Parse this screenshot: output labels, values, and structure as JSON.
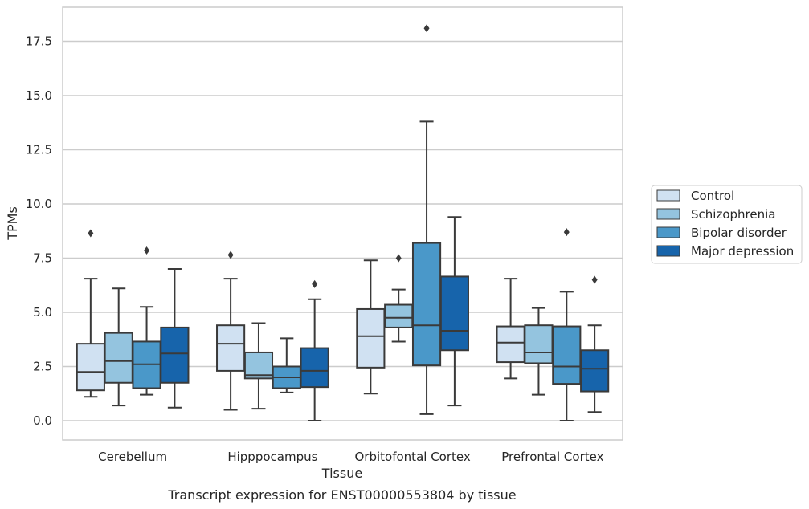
{
  "chart_data": {
    "type": "box",
    "xlabel": "Tissue",
    "ylabel": "TPMs",
    "caption": "Transcript expression for ENST00000553804 by tissue",
    "ylim": [
      -0.85,
      19.0
    ],
    "yticks": [
      "0.0",
      "2.5",
      "5.0",
      "7.5",
      "10.0",
      "12.5",
      "15.0",
      "17.5"
    ],
    "ytick_values": [
      0,
      2.5,
      5,
      7.5,
      10,
      12.5,
      15,
      17.5
    ],
    "grid": "horizontal",
    "legend_position": "right",
    "categories": [
      "Cerebellum",
      "Hipppocampus",
      "Orbitofontal Cortex",
      "Prefrontal Cortex"
    ],
    "series": [
      {
        "name": "Control",
        "color": "#d0e1f2",
        "boxes": [
          {
            "whislo": 1.1,
            "q1": 1.4,
            "med": 2.25,
            "q3": 3.55,
            "whishi": 6.55,
            "fliers": [
              8.65
            ]
          },
          {
            "whislo": 0.5,
            "q1": 2.3,
            "med": 3.55,
            "q3": 4.4,
            "whishi": 6.55,
            "fliers": [
              7.65
            ]
          },
          {
            "whislo": 1.25,
            "q1": 2.45,
            "med": 3.9,
            "q3": 5.15,
            "whishi": 7.4,
            "fliers": []
          },
          {
            "whislo": 1.95,
            "q1": 2.7,
            "med": 3.6,
            "q3": 4.35,
            "whishi": 6.55,
            "fliers": []
          }
        ]
      },
      {
        "name": "Schizophrenia",
        "color": "#94c4df",
        "boxes": [
          {
            "whislo": 0.7,
            "q1": 1.75,
            "med": 2.75,
            "q3": 4.05,
            "whishi": 6.1,
            "fliers": []
          },
          {
            "whislo": 0.55,
            "q1": 1.95,
            "med": 2.1,
            "q3": 3.15,
            "whishi": 4.5,
            "fliers": []
          },
          {
            "whislo": 3.65,
            "q1": 4.3,
            "med": 4.75,
            "q3": 5.35,
            "whishi": 6.05,
            "fliers": [
              7.5
            ]
          },
          {
            "whislo": 1.2,
            "q1": 2.65,
            "med": 3.15,
            "q3": 4.4,
            "whishi": 5.2,
            "fliers": []
          }
        ]
      },
      {
        "name": "Bipolar disorder",
        "color": "#4a98c9",
        "boxes": [
          {
            "whislo": 1.2,
            "q1": 1.5,
            "med": 2.6,
            "q3": 3.65,
            "whishi": 5.25,
            "fliers": [
              7.85
            ]
          },
          {
            "whislo": 1.3,
            "q1": 1.5,
            "med": 2.0,
            "q3": 2.5,
            "whishi": 3.8,
            "fliers": []
          },
          {
            "whislo": 0.3,
            "q1": 2.55,
            "med": 4.4,
            "q3": 8.2,
            "whishi": 13.8,
            "fliers": [
              18.1
            ]
          },
          {
            "whislo": 0.0,
            "q1": 1.7,
            "med": 2.5,
            "q3": 4.35,
            "whishi": 5.95,
            "fliers": [
              8.7
            ]
          }
        ]
      },
      {
        "name": "Major depression",
        "color": "#1764ab",
        "boxes": [
          {
            "whislo": 0.6,
            "q1": 1.75,
            "med": 3.1,
            "q3": 4.3,
            "whishi": 7.0,
            "fliers": []
          },
          {
            "whislo": 0.0,
            "q1": 1.55,
            "med": 2.3,
            "q3": 3.35,
            "whishi": 5.6,
            "fliers": [
              6.3
            ]
          },
          {
            "whislo": 0.7,
            "q1": 3.25,
            "med": 4.15,
            "q3": 6.65,
            "whishi": 9.4,
            "fliers": []
          },
          {
            "whislo": 0.4,
            "q1": 1.35,
            "med": 2.4,
            "q3": 3.25,
            "whishi": 4.4,
            "fliers": [
              6.5
            ]
          }
        ]
      }
    ]
  }
}
